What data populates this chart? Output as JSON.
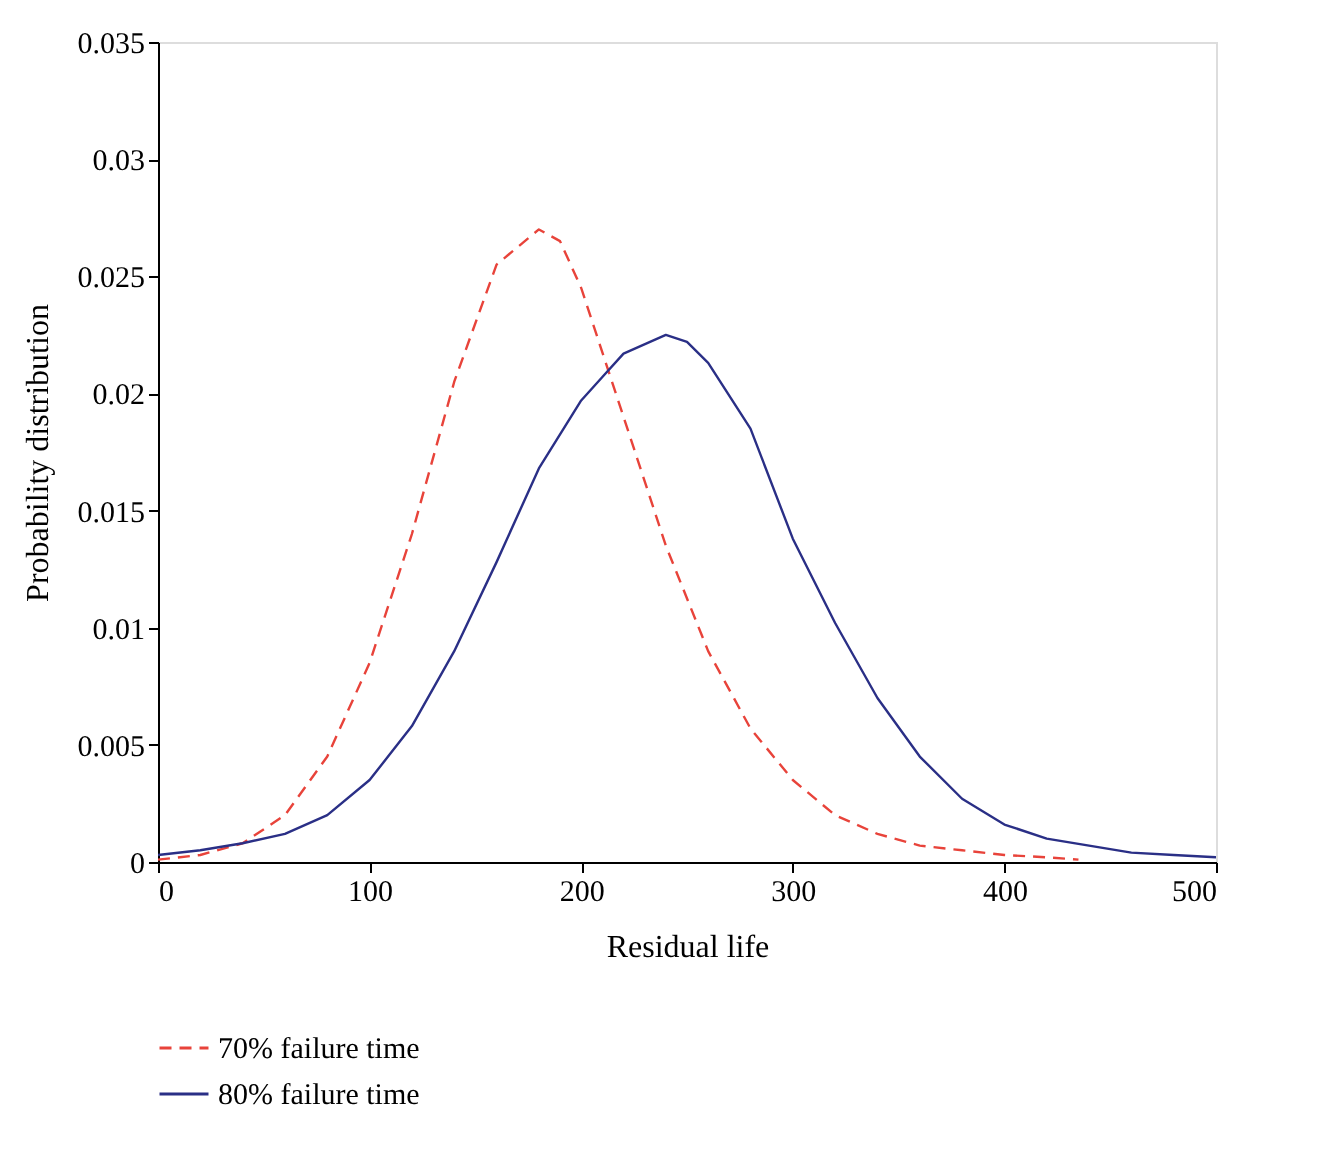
{
  "chart_data": {
    "type": "line",
    "xlabel": "Residual life",
    "ylabel": "Probability distribution",
    "xlim": [
      0,
      500
    ],
    "xticks": [
      0,
      100,
      200,
      300,
      400,
      500
    ],
    "ylim": [
      0,
      0.035
    ],
    "yticks": [
      0,
      0.005,
      0.01,
      0.015,
      0.02,
      0.025,
      0.03,
      0.035
    ],
    "grid": false,
    "legend": "bottom",
    "marker": "none",
    "series": [
      {
        "name": "70% failure time",
        "color": "#e8433a",
        "line_style": "dashed",
        "x": [
          0,
          20,
          40,
          60,
          80,
          100,
          120,
          140,
          160,
          180,
          190,
          200,
          220,
          240,
          260,
          280,
          300,
          320,
          340,
          360,
          380,
          400,
          420,
          435
        ],
        "values": [
          0.0001,
          0.0003,
          0.0008,
          0.002,
          0.0045,
          0.0085,
          0.014,
          0.0205,
          0.0255,
          0.027,
          0.0265,
          0.0245,
          0.019,
          0.0135,
          0.009,
          0.0057,
          0.0035,
          0.002,
          0.0012,
          0.0007,
          0.0005,
          0.0003,
          0.0002,
          0.0001
        ]
      },
      {
        "name": "80% failure time",
        "color": "#2a2f86",
        "line_style": "solid",
        "x": [
          0,
          20,
          40,
          60,
          80,
          100,
          120,
          140,
          160,
          180,
          200,
          210,
          220,
          240,
          250,
          260,
          280,
          300,
          320,
          340,
          360,
          380,
          400,
          420,
          440,
          460,
          480,
          500
        ],
        "values": [
          0.0003,
          0.0005,
          0.0008,
          0.0012,
          0.002,
          0.0035,
          0.0058,
          0.009,
          0.0128,
          0.0168,
          0.0197,
          0.0207,
          0.0217,
          0.0225,
          0.0222,
          0.0213,
          0.0185,
          0.0138,
          0.0102,
          0.007,
          0.0045,
          0.0027,
          0.0016,
          0.001,
          0.0007,
          0.0004,
          0.0003,
          0.0002
        ]
      }
    ]
  }
}
